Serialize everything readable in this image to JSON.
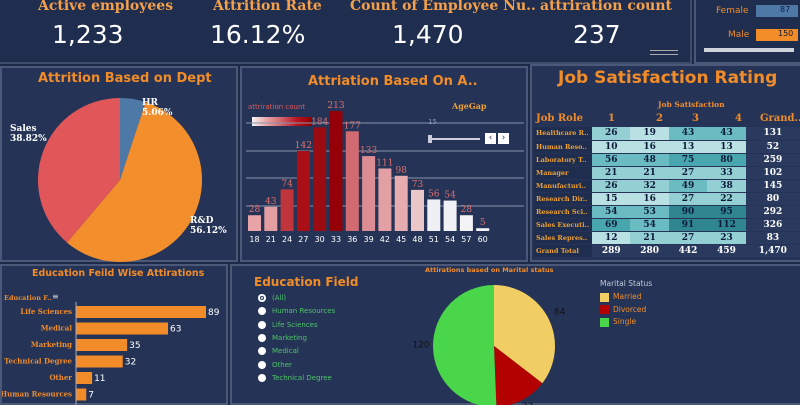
{
  "kpis": {
    "active_label": "Active employees",
    "active_value": "1,233",
    "rate_label": "Attrition Rate",
    "rate_value": "16.12%",
    "count_label": "Count of Employee Nu..",
    "count_value": "1,470",
    "attrition_label": "attriration count",
    "attrition_value": "237"
  },
  "gender_filter": {
    "female_label": "Female",
    "female_value": "87",
    "male_label": "Male",
    "male_value": "150"
  },
  "dept_chart": {
    "title": "Attrition Based on Dept",
    "labels": {
      "hr": "HR",
      "hr_pct": "5.06%",
      "sales": "Sales",
      "sales_pct": "38.82%",
      "rd": "R&D",
      "rd_pct": "56.12%"
    },
    "colors": {
      "hr": "#4e79a7",
      "sales": "#e15759",
      "rd": "#f28e2b"
    }
  },
  "age_chart": {
    "title": "Attriation Based On A..",
    "legend_title": "attriration count",
    "filter_label": "AgeGap",
    "filter_value": "15"
  },
  "job_satisfaction": {
    "title": "Job Satisfaction Rating",
    "subheader": "Job Satisfaction",
    "col_role": "Job Role",
    "cols": [
      "1",
      "2",
      "3",
      "4"
    ],
    "col_total": "Grand..",
    "rows": [
      {
        "role": "Healthcare R..",
        "v": [
          "26",
          "19",
          "43",
          "43"
        ],
        "t": "131"
      },
      {
        "role": "Human Reso..",
        "v": [
          "10",
          "16",
          "13",
          "13"
        ],
        "t": "52"
      },
      {
        "role": "Laboratory T..",
        "v": [
          "56",
          "48",
          "75",
          "80"
        ],
        "t": "259"
      },
      {
        "role": "Manager",
        "v": [
          "21",
          "21",
          "27",
          "33"
        ],
        "t": "102"
      },
      {
        "role": "Manufacturi..",
        "v": [
          "26",
          "32",
          "49",
          "38"
        ],
        "t": "145"
      },
      {
        "role": "Research Dir..",
        "v": [
          "15",
          "16",
          "27",
          "22"
        ],
        "t": "80"
      },
      {
        "role": "Research Sci..",
        "v": [
          "54",
          "53",
          "90",
          "95"
        ],
        "t": "292"
      },
      {
        "role": "Sales Executi..",
        "v": [
          "69",
          "54",
          "91",
          "112"
        ],
        "t": "326"
      },
      {
        "role": "Sales Repres..",
        "v": [
          "12",
          "21",
          "27",
          "23"
        ],
        "t": "83"
      },
      {
        "role": "Grand Total",
        "v": [
          "289",
          "280",
          "442",
          "459"
        ],
        "t": "1,470"
      }
    ]
  },
  "edu_attrition": {
    "title": "Education Feild Wise Attirations",
    "axis_label": "Education F.."
  },
  "edu_field_filter": {
    "title": "Education Field",
    "options": [
      "(All)",
      "Human Resources",
      "Life Sciences",
      "Marketing",
      "Medical",
      "Other",
      "Technical Degree"
    ]
  },
  "marital_chart": {
    "title": "Attirations based on Marital status",
    "legend_title": "Marital Status"
  },
  "chart_data": [
    {
      "type": "pie",
      "title": "Attrition Based on Dept",
      "categories": [
        "HR",
        "R&D",
        "Sales"
      ],
      "values": [
        5.06,
        56.12,
        38.82
      ]
    },
    {
      "type": "bar",
      "title": "Attriation Based On A..",
      "categories": [
        "18",
        "21",
        "24",
        "27",
        "30",
        "33",
        "36",
        "39",
        "42",
        "45",
        "48",
        "51",
        "54",
        "57",
        "60"
      ],
      "values": [
        28,
        43,
        74,
        142,
        184,
        213,
        177,
        133,
        111,
        98,
        73,
        56,
        54,
        28,
        5
      ]
    },
    {
      "type": "bar",
      "title": "Education Feild Wise Attirations",
      "orientation": "horizontal",
      "categories": [
        "Life Sciences",
        "Medical",
        "Marketing",
        "Technical Degree",
        "Other",
        "Human Resources"
      ],
      "values": [
        89,
        63,
        35,
        32,
        11,
        7
      ]
    },
    {
      "type": "pie",
      "title": "Attirations based on Marital status",
      "categories": [
        "Married",
        "Divorced",
        "Single"
      ],
      "values": [
        84,
        33,
        120
      ],
      "colors": [
        "#f1ce63",
        "#b30000",
        "#4ad64a"
      ]
    }
  ]
}
